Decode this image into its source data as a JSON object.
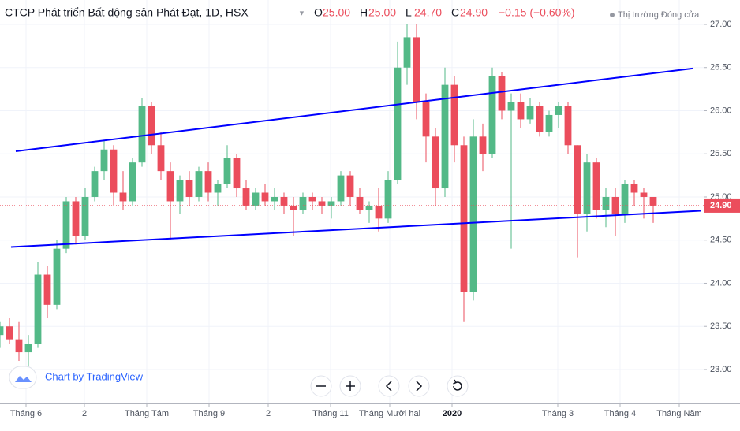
{
  "chart_data": {
    "type": "candlestick",
    "header": {
      "title": "CTCP Phát triển Bất động sản Phát Đạt, 1D, HSX",
      "fields": [
        {
          "key": "O",
          "value": "25.00"
        },
        {
          "key": "H",
          "value": "25.00"
        },
        {
          "key": "L",
          "value": "24.70"
        },
        {
          "key": "C",
          "value": "24.90"
        }
      ],
      "change": "−0.15 (−0.60%)",
      "market_status": "Thị trường Đóng cửa"
    },
    "watermark": "Chart by TradingView",
    "up_color": "#53b987",
    "down_color": "#eb4d5c",
    "xlim": [
      0,
      223
    ],
    "ylim": [
      22.607,
      27.283
    ],
    "grid": true,
    "xticks": [
      {
        "value": 8.25,
        "label": "Tháng 6"
      },
      {
        "value": 26.75,
        "label": "2"
      },
      {
        "value": 46.5,
        "label": "Tháng Tám"
      },
      {
        "value": 66.25,
        "label": "Tháng 9"
      },
      {
        "value": 85,
        "label": "2"
      },
      {
        "value": 104.75,
        "label": "Tháng 11"
      },
      {
        "value": 123.5,
        "label": "Tháng Mười hai"
      },
      {
        "value": 143.25,
        "label": "2020",
        "bold": true
      },
      {
        "value": 176.75,
        "label": "Tháng 3"
      },
      {
        "value": 196.5,
        "label": "Tháng 4"
      },
      {
        "value": 215.25,
        "label": "Tháng Năm"
      }
    ],
    "yticks": [
      {
        "value": 23,
        "label": "23.00"
      },
      {
        "value": 23.5,
        "label": "23.50"
      },
      {
        "value": 24,
        "label": "24.00"
      },
      {
        "value": 24.5,
        "label": "24.50"
      },
      {
        "value": 25,
        "label": "25.00"
      },
      {
        "value": 25.5,
        "label": "25.50"
      },
      {
        "value": 26,
        "label": "26.00"
      },
      {
        "value": 26.5,
        "label": "26.50"
      },
      {
        "value": 27,
        "label": "27.00"
      }
    ],
    "x": [
      0,
      3,
      6,
      9,
      12,
      15,
      18,
      21,
      24,
      27,
      30,
      33,
      36,
      39,
      42,
      45,
      48,
      51,
      54,
      57,
      60,
      63,
      66,
      69,
      72,
      75,
      78,
      81,
      84,
      87,
      90,
      93,
      96,
      99,
      102,
      105,
      108,
      111,
      114,
      117,
      120,
      123,
      126,
      129,
      132,
      135,
      138,
      141,
      144,
      147,
      150,
      153,
      156,
      159,
      162,
      165,
      168,
      171,
      174,
      177,
      180,
      183,
      186,
      189,
      192,
      195,
      198,
      201,
      204,
      207
    ],
    "ohlc": [
      [
        23.4,
        23.55,
        23.25,
        23.5
      ],
      [
        23.5,
        23.6,
        23.3,
        23.35
      ],
      [
        23.35,
        23.55,
        23.1,
        23.2
      ],
      [
        23.2,
        23.4,
        23.0,
        23.3
      ],
      [
        23.3,
        24.25,
        23.25,
        24.1
      ],
      [
        24.1,
        24.2,
        23.6,
        23.75
      ],
      [
        23.75,
        24.5,
        23.7,
        24.4
      ],
      [
        24.4,
        25.0,
        24.35,
        24.95
      ],
      [
        24.95,
        25.0,
        24.45,
        24.55
      ],
      [
        24.55,
        25.1,
        24.5,
        25.0
      ],
      [
        25.0,
        25.35,
        24.95,
        25.3
      ],
      [
        25.3,
        25.65,
        25.2,
        25.55
      ],
      [
        25.55,
        25.6,
        24.9,
        25.05
      ],
      [
        25.05,
        25.3,
        24.85,
        24.95
      ],
      [
        24.95,
        25.45,
        24.9,
        25.4
      ],
      [
        25.4,
        26.15,
        25.35,
        26.05
      ],
      [
        26.05,
        26.1,
        25.5,
        25.6
      ],
      [
        25.6,
        25.75,
        25.2,
        25.3
      ],
      [
        25.3,
        25.4,
        24.5,
        24.95
      ],
      [
        24.95,
        25.25,
        24.8,
        25.2
      ],
      [
        25.2,
        25.3,
        24.9,
        25.0
      ],
      [
        25.0,
        25.35,
        24.95,
        25.3
      ],
      [
        25.3,
        25.4,
        24.95,
        25.05
      ],
      [
        25.05,
        25.2,
        24.9,
        25.15
      ],
      [
        25.15,
        25.6,
        25.1,
        25.45
      ],
      [
        25.45,
        25.5,
        25.0,
        25.1
      ],
      [
        25.1,
        25.2,
        24.85,
        24.9
      ],
      [
        24.9,
        25.1,
        24.85,
        25.05
      ],
      [
        25.05,
        25.15,
        24.9,
        24.95
      ],
      [
        24.95,
        25.1,
        24.85,
        25.0
      ],
      [
        25.0,
        25.05,
        24.8,
        24.9
      ],
      [
        24.9,
        25.0,
        24.55,
        24.85
      ],
      [
        24.85,
        25.05,
        24.8,
        25.0
      ],
      [
        25.0,
        25.05,
        24.85,
        24.95
      ],
      [
        24.95,
        25.0,
        24.8,
        24.9
      ],
      [
        24.9,
        25.0,
        24.75,
        24.95
      ],
      [
        24.95,
        25.3,
        24.9,
        25.25
      ],
      [
        25.25,
        25.3,
        24.9,
        25.0
      ],
      [
        25.0,
        25.1,
        24.8,
        24.85
      ],
      [
        24.85,
        24.95,
        24.7,
        24.9
      ],
      [
        24.9,
        25.1,
        24.6,
        24.75
      ],
      [
        24.75,
        25.3,
        24.7,
        25.2
      ],
      [
        25.2,
        26.8,
        25.15,
        26.5
      ],
      [
        26.5,
        27.0,
        26.3,
        26.85
      ],
      [
        26.85,
        27.0,
        25.9,
        26.1
      ],
      [
        26.1,
        26.2,
        25.4,
        25.7
      ],
      [
        25.7,
        25.8,
        24.9,
        25.1
      ],
      [
        25.1,
        26.5,
        25.0,
        26.3
      ],
      [
        26.3,
        26.4,
        25.4,
        25.6
      ],
      [
        25.6,
        25.7,
        23.55,
        23.9
      ],
      [
        23.9,
        25.9,
        23.8,
        25.7
      ],
      [
        25.7,
        25.85,
        25.3,
        25.5
      ],
      [
        25.5,
        26.5,
        25.45,
        26.4
      ],
      [
        26.4,
        26.45,
        25.9,
        26.0
      ],
      [
        26.0,
        26.2,
        24.4,
        26.1
      ],
      [
        26.1,
        26.2,
        25.8,
        25.9
      ],
      [
        25.9,
        26.15,
        25.85,
        26.05
      ],
      [
        26.05,
        26.1,
        25.7,
        25.75
      ],
      [
        25.75,
        26.0,
        25.7,
        25.95
      ],
      [
        25.95,
        26.1,
        25.8,
        26.05
      ],
      [
        26.05,
        26.1,
        25.5,
        25.6
      ],
      [
        25.6,
        25.6,
        24.3,
        24.8
      ],
      [
        24.8,
        25.5,
        24.6,
        25.4
      ],
      [
        25.4,
        25.45,
        24.75,
        24.85
      ],
      [
        24.85,
        25.1,
        24.65,
        25.0
      ],
      [
        25.0,
        25.1,
        24.55,
        24.8
      ],
      [
        24.8,
        25.2,
        24.7,
        25.15
      ],
      [
        25.15,
        25.2,
        24.9,
        25.05
      ],
      [
        25.05,
        25.1,
        24.75,
        25.0
      ],
      [
        25.0,
        25.0,
        24.7,
        24.9
      ]
    ],
    "trend_lines": [
      {
        "x": [
          5,
          219.5
        ],
        "y": [
          25.53,
          26.49
        ],
        "color": "#0000ff"
      },
      {
        "x": [
          3.5,
          222
        ],
        "y": [
          24.42,
          24.84
        ],
        "color": "#0000ff"
      }
    ],
    "last_price": {
      "value": 24.9,
      "label": "24.90",
      "color": "#eb4d5c"
    }
  }
}
